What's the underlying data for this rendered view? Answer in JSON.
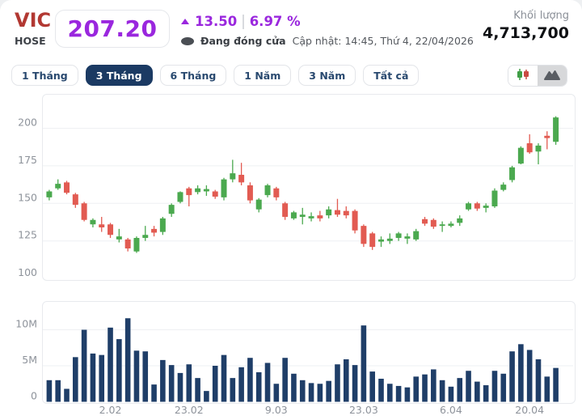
{
  "header": {
    "symbol": "VIC",
    "exchange": "HOSE",
    "price": "207.20",
    "change": "13.50",
    "change_percent": "6.97 %",
    "market_status": "Đang đóng cửa",
    "updated": "Cập nhật: 14:45, Thứ 4, 22/04/2026",
    "volume_label": "Khối lượng",
    "volume_value": "4,713,700"
  },
  "ranges": {
    "items": [
      "1 Tháng",
      "3 Tháng",
      "6 Tháng",
      "1 Năm",
      "3 Năm",
      "Tất cả"
    ],
    "active_index": 1
  },
  "chart_toggle": {
    "options": [
      "candlestick",
      "area"
    ],
    "icons": [
      "candlestick-icon",
      "mountain-icon"
    ]
  },
  "colors": {
    "accent_purple": "#9A27DE",
    "symbol_red": "#B23832",
    "navy": "#1B3A63",
    "candle_up": "#4BA94F",
    "candle_down": "#E25B52",
    "volume_bar": "#1F3E68",
    "grid": "#EEF0F3",
    "axis_text": "#8E939B"
  },
  "chart_data": {
    "type": "candlestick",
    "title": "VIC 3-month daily price (candles) with volume",
    "price_ticks": [
      "200",
      "175",
      "150",
      "125",
      "100"
    ],
    "price_tick_values": [
      200,
      175,
      150,
      125,
      100
    ],
    "volume_ticks": [
      "10M",
      "5M",
      "0"
    ],
    "volume_tick_values": [
      10,
      5,
      0
    ],
    "x_ticks": [
      {
        "label": "2.02",
        "index": 7
      },
      {
        "label": "23.02",
        "index": 16
      },
      {
        "label": "9.03",
        "index": 26
      },
      {
        "label": "23.03",
        "index": 36
      },
      {
        "label": "6.04",
        "index": 46
      },
      {
        "label": "20.04",
        "index": 55
      }
    ],
    "candles_ohlc": [
      [
        154,
        159,
        152,
        158
      ],
      [
        160,
        166,
        159,
        163
      ],
      [
        164,
        165,
        156,
        157
      ],
      [
        156,
        157,
        147,
        149
      ],
      [
        150,
        151,
        138,
        139
      ],
      [
        136,
        140,
        134,
        139
      ],
      [
        136,
        141,
        131,
        134
      ],
      [
        136,
        137,
        127,
        129
      ],
      [
        126,
        133,
        124,
        128
      ],
      [
        126,
        127,
        118,
        120
      ],
      [
        118,
        128,
        117,
        127
      ],
      [
        127,
        135,
        125,
        129
      ],
      [
        133,
        135,
        128,
        130.5
      ],
      [
        131,
        141,
        129,
        140
      ],
      [
        143,
        150,
        141,
        149
      ],
      [
        151,
        158,
        150,
        157.5
      ],
      [
        160,
        161,
        148,
        155.5
      ],
      [
        157.5,
        162,
        156,
        160
      ],
      [
        158,
        162,
        155,
        159.5
      ],
      [
        158,
        159,
        153,
        154.5
      ],
      [
        154,
        167,
        152,
        166
      ],
      [
        166,
        179,
        164,
        170
      ],
      [
        169,
        177,
        162,
        164
      ],
      [
        162,
        164,
        150,
        152
      ],
      [
        146,
        153.5,
        144,
        152.5
      ],
      [
        155.5,
        163,
        154,
        162
      ],
      [
        160,
        161,
        152,
        154
      ],
      [
        150,
        151,
        139,
        141
      ],
      [
        140,
        145,
        139,
        144
      ],
      [
        141,
        147,
        136,
        142.5
      ],
      [
        140,
        144,
        138,
        141.5
      ],
      [
        142,
        145,
        138,
        140
      ],
      [
        142,
        148,
        140,
        146
      ],
      [
        145.5,
        153,
        141,
        142.5
      ],
      [
        145,
        148,
        140,
        142
      ],
      [
        145,
        146,
        130,
        132
      ],
      [
        135,
        136,
        121,
        123
      ],
      [
        130,
        131,
        119,
        121
      ],
      [
        124.5,
        128,
        121,
        126
      ],
      [
        125,
        130,
        123,
        126.5
      ],
      [
        127,
        131,
        125,
        130
      ],
      [
        126.5,
        130,
        123,
        128
      ],
      [
        126,
        133,
        125,
        131.5
      ],
      [
        139.5,
        141,
        135,
        136.5
      ],
      [
        139,
        140,
        133,
        134.5
      ],
      [
        135,
        138,
        131,
        136
      ],
      [
        135,
        138,
        134,
        136.5
      ],
      [
        137,
        142,
        135,
        140
      ],
      [
        146,
        151,
        145,
        150
      ],
      [
        150,
        151,
        145,
        146.5
      ],
      [
        147,
        150,
        144,
        148.5
      ],
      [
        148,
        160,
        147,
        158.5
      ],
      [
        159,
        164,
        158,
        162.5
      ],
      [
        165.5,
        175,
        164,
        174
      ],
      [
        176.5,
        188,
        176,
        187
      ],
      [
        190,
        196,
        183,
        184
      ],
      [
        184.5,
        190,
        176,
        188.5
      ],
      [
        195,
        198,
        186,
        193.5
      ],
      [
        191,
        208,
        189,
        207.2
      ]
    ],
    "volumes_millions": [
      3.0,
      3.0,
      1.8,
      6.2,
      10.0,
      6.7,
      6.5,
      10.3,
      8.7,
      11.6,
      7.1,
      7.0,
      2.4,
      5.8,
      5.1,
      4.0,
      5.2,
      3.3,
      1.5,
      5.0,
      6.5,
      3.3,
      4.8,
      6.1,
      4.1,
      5.4,
      2.5,
      6.1,
      3.9,
      3.0,
      2.6,
      2.5,
      2.9,
      5.2,
      5.9,
      5.1,
      10.6,
      4.2,
      3.2,
      2.5,
      2.2,
      2.0,
      3.5,
      3.8,
      4.5,
      3.0,
      2.1,
      3.3,
      4.3,
      2.8,
      2.3,
      4.3,
      3.9,
      7.0,
      8.0,
      7.2,
      5.9,
      3.5,
      4.7
    ],
    "legend_position": "none",
    "grid": true
  }
}
